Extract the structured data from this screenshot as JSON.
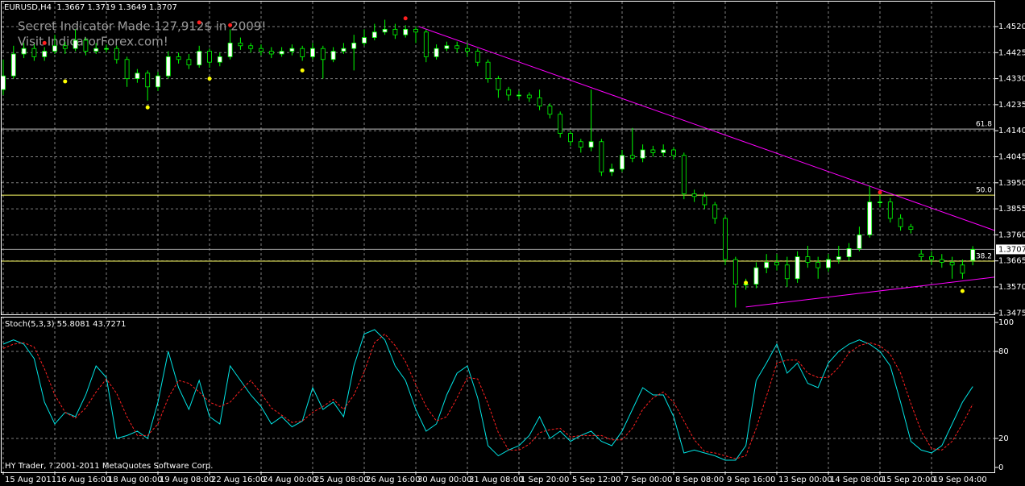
{
  "chart_data": {
    "type": "candlestick",
    "header": "EURUSD,H4  1.3667 1.3719 1.3649 1.3707",
    "watermark": [
      "Secret Indicator Made 127,912$ in 2009!",
      "Visit IndicatorForex.com!"
    ],
    "copyright": "HY Trader, ? 2001-2011 MetaQuotes Software Corp.",
    "categories": [
      "15 Aug 2011",
      null,
      null,
      null,
      null,
      "16 Aug 16:00",
      null,
      null,
      null,
      null,
      "18 Aug 00:00",
      null,
      null,
      null,
      null,
      "19 Aug 08:00",
      null,
      null,
      null,
      null,
      "22 Aug 16:00",
      null,
      null,
      null,
      null,
      "24 Aug 00:00",
      null,
      null,
      null,
      null,
      "25 Aug 08:00",
      null,
      null,
      null,
      null,
      "26 Aug 16:00",
      null,
      null,
      null,
      null,
      "30 Aug 00:00",
      null,
      null,
      null,
      null,
      "31 Aug 08:00",
      null,
      null,
      null,
      null,
      "1 Sep 20:00",
      null,
      null,
      null,
      null,
      "5 Sep 12:00",
      null,
      null,
      null,
      null,
      "7 Sep 00:00",
      null,
      null,
      null,
      null,
      "8 Sep 08:00",
      null,
      null,
      null,
      null,
      "9 Sep 16:00",
      null,
      null,
      null,
      null,
      "13 Sep 00:00",
      null,
      null,
      null,
      null,
      "14 Sep 08:00",
      null,
      null,
      null,
      null,
      "15 Sep 20:00",
      null,
      null,
      null,
      null,
      "19 Sep 04:00",
      null,
      null,
      null,
      null
    ],
    "ohlc": [
      [
        1.429,
        1.44,
        1.427,
        1.434
      ],
      [
        1.434,
        1.445,
        1.433,
        1.442
      ],
      [
        1.442,
        1.446,
        1.4405,
        1.444
      ],
      [
        1.444,
        1.4455,
        1.4395,
        1.441
      ],
      [
        1.441,
        1.4445,
        1.4395,
        1.443
      ],
      [
        1.443,
        1.449,
        1.442,
        1.445
      ],
      [
        1.445,
        1.4465,
        1.442,
        1.444
      ],
      [
        1.444,
        1.451,
        1.443,
        1.447
      ],
      [
        1.447,
        1.448,
        1.4415,
        1.443
      ],
      [
        1.443,
        1.446,
        1.442,
        1.444
      ],
      [
        1.444,
        1.4455,
        1.4425,
        1.444
      ],
      [
        1.444,
        1.445,
        1.4385,
        1.44
      ],
      [
        1.44,
        1.441,
        1.43,
        1.433
      ],
      [
        1.433,
        1.4365,
        1.4315,
        1.435
      ],
      [
        1.435,
        1.436,
        1.425,
        1.43
      ],
      [
        1.43,
        1.4355,
        1.4285,
        1.434
      ],
      [
        1.434,
        1.443,
        1.433,
        1.441
      ],
      [
        1.441,
        1.4425,
        1.4385,
        1.44
      ],
      [
        1.44,
        1.442,
        1.4365,
        1.438
      ],
      [
        1.438,
        1.445,
        1.437,
        1.443
      ],
      [
        1.443,
        1.444,
        1.437,
        1.439
      ],
      [
        1.439,
        1.4425,
        1.4375,
        1.441
      ],
      [
        1.441,
        1.451,
        1.44,
        1.446
      ],
      [
        1.446,
        1.448,
        1.4435,
        1.445
      ],
      [
        1.445,
        1.446,
        1.4425,
        1.444
      ],
      [
        1.444,
        1.4455,
        1.4415,
        1.443
      ],
      [
        1.443,
        1.4445,
        1.4405,
        1.442
      ],
      [
        1.442,
        1.4445,
        1.441,
        1.443
      ],
      [
        1.443,
        1.4455,
        1.4415,
        1.444
      ],
      [
        1.444,
        1.445,
        1.4395,
        1.441
      ],
      [
        1.441,
        1.446,
        1.44,
        1.444
      ],
      [
        1.444,
        1.445,
        1.433,
        1.44
      ],
      [
        1.44,
        1.4445,
        1.439,
        1.443
      ],
      [
        1.443,
        1.446,
        1.442,
        1.444
      ],
      [
        1.444,
        1.449,
        1.436,
        1.446
      ],
      [
        1.446,
        1.451,
        1.445,
        1.448
      ],
      [
        1.448,
        1.453,
        1.447,
        1.45
      ],
      [
        1.45,
        1.4545,
        1.449,
        1.451
      ],
      [
        1.451,
        1.453,
        1.4475,
        1.449
      ],
      [
        1.449,
        1.4525,
        1.448,
        1.451
      ],
      [
        1.451,
        1.452,
        1.446,
        1.45
      ],
      [
        1.45,
        1.451,
        1.439,
        1.441
      ],
      [
        1.441,
        1.4455,
        1.44,
        1.444
      ],
      [
        1.444,
        1.4465,
        1.443,
        1.445
      ],
      [
        1.445,
        1.4465,
        1.4425,
        1.444
      ],
      [
        1.444,
        1.446,
        1.441,
        1.443
      ],
      [
        1.443,
        1.444,
        1.4375,
        1.439
      ],
      [
        1.439,
        1.44,
        1.4315,
        1.433
      ],
      [
        1.433,
        1.434,
        1.426,
        1.429
      ],
      [
        1.429,
        1.43,
        1.425,
        1.427
      ],
      [
        1.427,
        1.4285,
        1.4255,
        1.427
      ],
      [
        1.427,
        1.428,
        1.4245,
        1.426
      ],
      [
        1.426,
        1.429,
        1.4215,
        1.423
      ],
      [
        1.423,
        1.424,
        1.4185,
        1.42
      ],
      [
        1.42,
        1.421,
        1.4115,
        1.413
      ],
      [
        1.413,
        1.414,
        1.4085,
        1.41
      ],
      [
        1.41,
        1.411,
        1.406,
        1.408
      ],
      [
        1.408,
        1.429,
        1.4065,
        1.41
      ],
      [
        1.41,
        1.411,
        1.3975,
        1.399
      ],
      [
        1.399,
        1.402,
        1.3975,
        1.4
      ],
      [
        1.4,
        1.407,
        1.399,
        1.405
      ],
      [
        1.405,
        1.415,
        1.4025,
        1.404
      ],
      [
        1.404,
        1.409,
        1.4025,
        1.407
      ],
      [
        1.407,
        1.4085,
        1.4045,
        1.406
      ],
      [
        1.406,
        1.409,
        1.4045,
        1.407
      ],
      [
        1.407,
        1.408,
        1.4035,
        1.405
      ],
      [
        1.405,
        1.406,
        1.389,
        1.391
      ],
      [
        1.391,
        1.3925,
        1.388,
        1.39
      ],
      [
        1.39,
        1.3915,
        1.3855,
        1.387
      ],
      [
        1.387,
        1.388,
        1.38,
        1.382
      ],
      [
        1.382,
        1.383,
        1.365,
        1.367
      ],
      [
        1.367,
        1.368,
        1.3495,
        1.358
      ],
      [
        1.358,
        1.36,
        1.356,
        1.358
      ],
      [
        1.358,
        1.366,
        1.3565,
        1.364
      ],
      [
        1.364,
        1.369,
        1.362,
        1.366
      ],
      [
        1.366,
        1.369,
        1.363,
        1.365
      ],
      [
        1.365,
        1.368,
        1.357,
        1.36
      ],
      [
        1.36,
        1.37,
        1.3585,
        1.368
      ],
      [
        1.368,
        1.372,
        1.364,
        1.366
      ],
      [
        1.366,
        1.368,
        1.36,
        1.364
      ],
      [
        1.364,
        1.369,
        1.3625,
        1.367
      ],
      [
        1.367,
        1.372,
        1.3655,
        1.368
      ],
      [
        1.368,
        1.373,
        1.3665,
        1.371
      ],
      [
        1.371,
        1.379,
        1.37,
        1.376
      ],
      [
        1.376,
        1.394,
        1.375,
        1.388
      ],
      [
        1.388,
        1.391,
        1.386,
        1.388
      ],
      [
        1.388,
        1.3895,
        1.3805,
        1.382
      ],
      [
        1.382,
        1.3835,
        1.3775,
        1.379
      ],
      [
        1.379,
        1.38,
        1.3765,
        1.378
      ],
      [
        1.369,
        1.3705,
        1.3665,
        1.368
      ],
      [
        1.368,
        1.37,
        1.365,
        1.367
      ],
      [
        1.367,
        1.369,
        1.364,
        1.366
      ],
      [
        1.366,
        1.368,
        1.36,
        1.365
      ],
      [
        1.365,
        1.367,
        1.36,
        1.362
      ],
      [
        1.3667,
        1.3719,
        1.3649,
        1.3707
      ]
    ],
    "bull_color": "#ffffff",
    "bear_color": "#000000",
    "wick_color": "#00ff00",
    "ylim": [
      1.347,
      1.4617
    ],
    "yticks": [
      {
        "value": 1.452,
        "label": "1.4520"
      },
      {
        "value": 1.4425,
        "label": "1.4425"
      },
      {
        "value": 1.433,
        "label": "1.4330"
      },
      {
        "value": 1.4235,
        "label": "1.4235"
      },
      {
        "value": 1.414,
        "label": "1.4140"
      },
      {
        "value": 1.4045,
        "label": "1.4045"
      },
      {
        "value": 1.395,
        "label": "1.3950"
      },
      {
        "value": 1.3855,
        "label": "1.3855"
      },
      {
        "value": 1.376,
        "label": "1.3760"
      },
      {
        "value": 1.3665,
        "label": "1.3665"
      },
      {
        "value": 1.357,
        "label": "1.3570"
      },
      {
        "value": 1.3475,
        "label": "1.3475"
      }
    ],
    "grid": true,
    "current_price": 1.3707,
    "fib_levels": [
      {
        "value": 1.4146,
        "label": "61.8",
        "color": "#c0c0c0"
      },
      {
        "value": 1.3905,
        "label": "50.0",
        "color": "#ffff66"
      },
      {
        "value": 1.3664,
        "label": "38.2",
        "color": "#ffff66"
      }
    ],
    "trendlines": [
      {
        "x": [
          40.3,
          96.2
        ],
        "y": [
          1.452,
          1.3775
        ],
        "color": "#ff00ff"
      },
      {
        "x": [
          72,
          96.2
        ],
        "y": [
          1.3497,
          1.3606
        ],
        "color": "#ff00ff"
      }
    ],
    "fractals": [
      {
        "color": "#ff2020",
        "points": [
          [
            4,
            1.446
          ],
          [
            19,
            1.4535
          ],
          [
            22,
            1.4525
          ],
          [
            39,
            1.455
          ],
          [
            85,
            1.3915
          ]
        ]
      },
      {
        "color": "#ffff00",
        "points": [
          [
            6,
            1.432
          ],
          [
            14,
            1.4225
          ],
          [
            20,
            1.433
          ],
          [
            29,
            1.436
          ],
          [
            72,
            1.3585
          ],
          [
            93,
            1.3555
          ]
        ]
      }
    ],
    "indicator": {
      "type": "line",
      "label": "Stoch(5,3,3) 55.8081 43.7271",
      "ylim": [
        -2.8,
        103.9
      ],
      "yticks": [
        100,
        80,
        20,
        0
      ],
      "series": [
        {
          "color": "#00e5e5",
          "dash": false,
          "values": [
            85,
            88,
            85,
            75,
            45,
            30,
            38,
            35,
            50,
            70,
            62,
            20,
            22,
            25,
            20,
            45,
            80,
            55,
            40,
            60,
            35,
            30,
            70,
            60,
            50,
            42,
            30,
            35,
            28,
            32,
            55,
            40,
            45,
            35,
            70,
            92,
            95,
            88,
            70,
            60,
            40,
            25,
            30,
            50,
            65,
            70,
            48,
            15,
            8,
            12,
            15,
            22,
            35,
            20,
            25,
            18,
            22,
            25,
            18,
            15,
            25,
            40,
            55,
            50,
            50,
            35,
            10,
            12,
            10,
            8,
            5,
            5,
            15,
            60,
            72,
            85,
            65,
            72,
            58,
            55,
            72,
            80,
            85,
            88,
            85,
            80,
            70,
            45,
            18,
            12,
            10,
            15,
            30,
            45,
            55.8
          ]
        },
        {
          "color": "#ff2020",
          "dash": true,
          "values": [
            82,
            85,
            86,
            83,
            68,
            50,
            38,
            34,
            41,
            52,
            61,
            51,
            35,
            22,
            22,
            30,
            48,
            60,
            58,
            52,
            45,
            42,
            45,
            53,
            60,
            51,
            41,
            36,
            31,
            32,
            38,
            42,
            47,
            40,
            50,
            66,
            86,
            92,
            84,
            73,
            57,
            42,
            32,
            35,
            48,
            62,
            61,
            44,
            24,
            12,
            12,
            16,
            24,
            26,
            27,
            21,
            22,
            22,
            22,
            19,
            19,
            27,
            40,
            48,
            52,
            45,
            32,
            19,
            11,
            10,
            8,
            6,
            8,
            27,
            49,
            72,
            74,
            74,
            65,
            62,
            62,
            69,
            79,
            84,
            86,
            84,
            78,
            65,
            44,
            25,
            13,
            12,
            18,
            30,
            43.7
          ]
        }
      ]
    }
  }
}
